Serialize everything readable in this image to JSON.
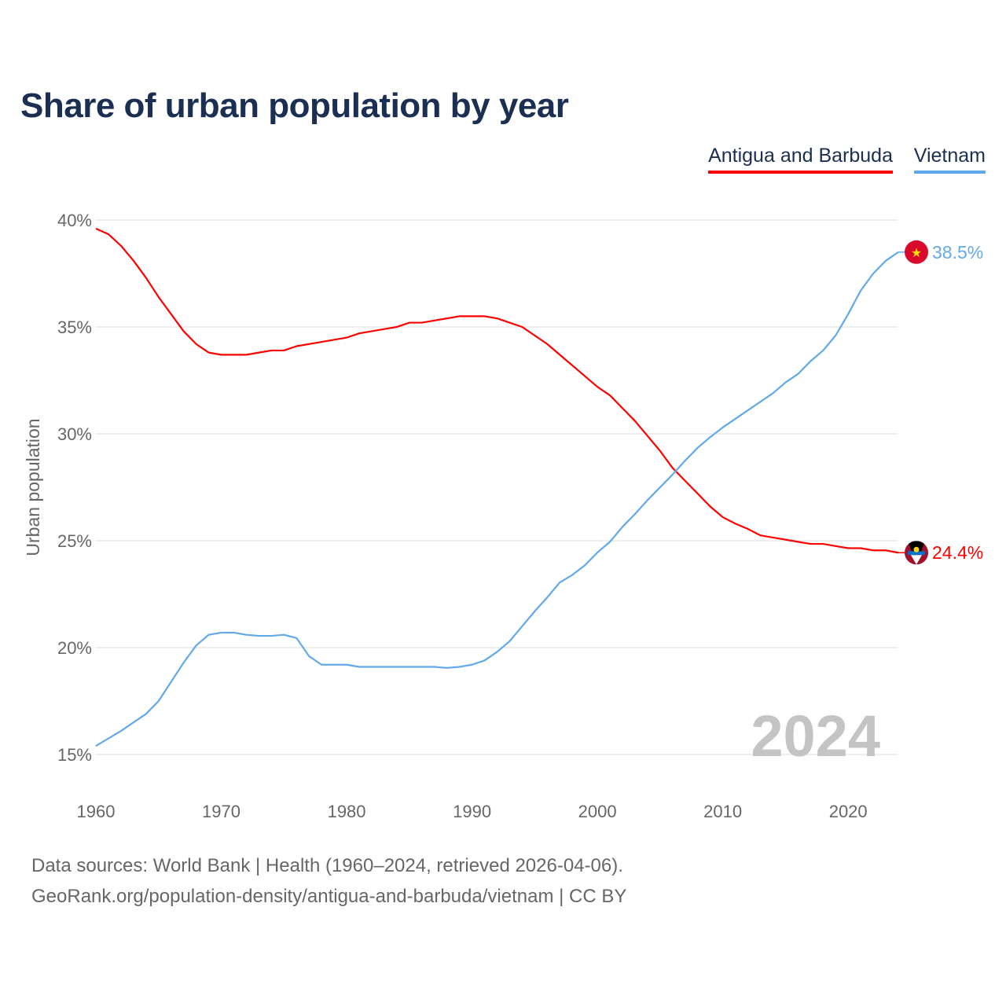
{
  "chart_data": {
    "type": "line",
    "title": "Share of urban population by year",
    "xlabel": "",
    "ylabel": "Urban population",
    "ylim": [
      15,
      40
    ],
    "xlim": [
      1960,
      2024
    ],
    "yticks": [
      "15%",
      "20%",
      "25%",
      "30%",
      "35%",
      "40%"
    ],
    "ytick_values": [
      15,
      20,
      25,
      30,
      35,
      40
    ],
    "xticks": [
      "1960",
      "1970",
      "1980",
      "1990",
      "2000",
      "2010",
      "2020"
    ],
    "xtick_values": [
      1960,
      1970,
      1980,
      1990,
      2000,
      2010,
      2020
    ],
    "grid": true,
    "legend_position": "top-right",
    "year_label": "2024",
    "x_start": 1960,
    "series": [
      {
        "name": "Antigua and Barbuda",
        "color": "#ff0000",
        "end_label": "24.4%",
        "flag": "antigua-flag",
        "values": [
          39.6,
          39.34,
          38.8,
          38.1,
          37.3,
          36.4,
          35.6,
          34.8,
          34.2,
          33.8,
          33.7,
          33.7,
          33.7,
          33.8,
          33.9,
          33.9,
          34.1,
          34.2,
          34.3,
          34.4,
          34.5,
          34.7,
          34.8,
          34.9,
          35.0,
          35.2,
          35.2,
          35.3,
          35.4,
          35.5,
          35.5,
          35.5,
          35.4,
          35.2,
          35.0,
          34.6,
          34.2,
          33.7,
          33.2,
          32.7,
          32.2,
          31.8,
          31.2,
          30.6,
          29.9,
          29.2,
          28.4,
          27.8,
          27.2,
          26.6,
          26.1,
          25.8,
          25.55,
          25.25,
          25.15,
          25.05,
          24.95,
          24.85,
          24.85,
          24.75,
          24.65,
          24.65,
          24.55,
          24.55,
          24.44
        ]
      },
      {
        "name": "Vietnam",
        "color": "#62a9ec",
        "end_label": "38.5%",
        "flag": "vietnam-flag",
        "values": [
          15.4,
          15.75,
          16.1,
          16.5,
          16.9,
          17.5,
          18.4,
          19.3,
          20.1,
          20.6,
          20.7,
          20.7,
          20.6,
          20.55,
          20.55,
          20.6,
          20.45,
          19.6,
          19.2,
          19.2,
          19.2,
          19.1,
          19.1,
          19.1,
          19.1,
          19.1,
          19.1,
          19.1,
          19.05,
          19.1,
          19.2,
          19.4,
          19.8,
          20.3,
          21.0,
          21.7,
          22.35,
          23.05,
          23.4,
          23.85,
          24.45,
          24.95,
          25.65,
          26.25,
          26.9,
          27.5,
          28.1,
          28.75,
          29.35,
          29.85,
          30.3,
          30.7,
          31.1,
          31.5,
          31.9,
          32.4,
          32.8,
          33.4,
          33.9,
          34.6,
          35.6,
          36.7,
          37.5,
          38.1,
          38.5
        ]
      }
    ]
  },
  "footer": {
    "line1": "Data sources: World Bank | Health (1960–2024, retrieved 2026-04-06).",
    "line2": "GeoRank.org/population-density/antigua-and-barbuda/vietnam | CC BY"
  }
}
